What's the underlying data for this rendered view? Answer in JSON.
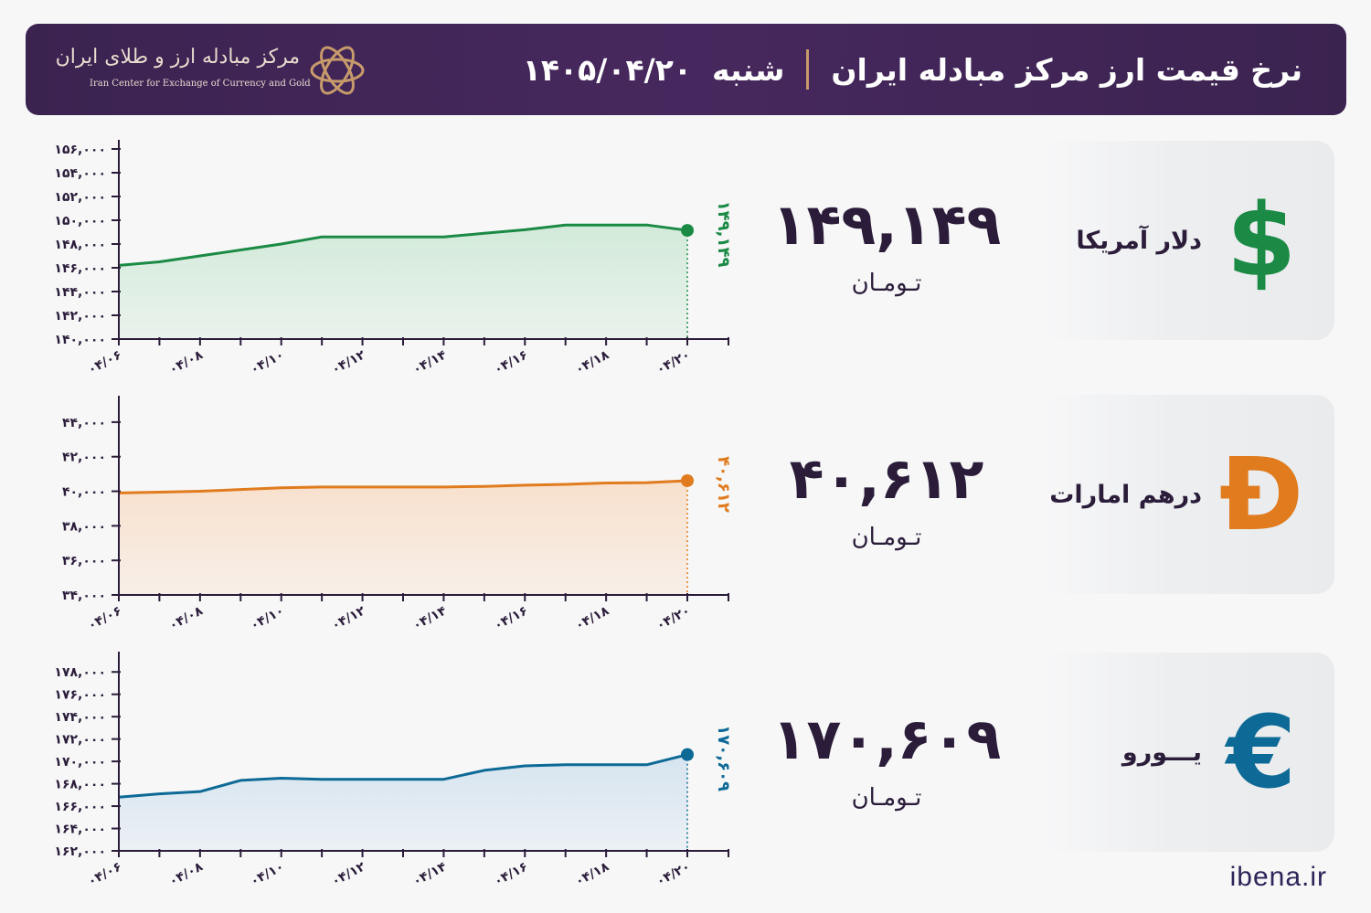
{
  "header": {
    "title": "نرخ قیمت ارز مرکز مبادله ایران",
    "day": "شنبه",
    "date": "۱۴۰۵/۰۴/۲۰",
    "logo_fa": "مرکز مبادله ارز و طلای ایران",
    "logo_en": "Iran Center for Exchange of Currency and Gold",
    "colors": {
      "bg": "#45275b",
      "accent": "#c79a6c"
    }
  },
  "currencies": [
    {
      "label": "دلار آمریکا",
      "symbol": "$",
      "icon": "dollar-icon",
      "value": "۱۴۹,۱۴۹",
      "unit": "تـومـان",
      "color": "#1b8a45"
    },
    {
      "label": "درهم امارات",
      "symbol": "Đ",
      "icon": "dirham-icon",
      "value": "۴۰,۶۱۲",
      "unit": "تـومـان",
      "color": "#e07b1e"
    },
    {
      "label": "یـــورو",
      "symbol": "€",
      "icon": "euro-icon",
      "value": "۱۷۰,۶۰۹",
      "unit": "تـومـان",
      "color": "#0d6a96"
    }
  ],
  "footer": "ibena.ir",
  "chart_data": [
    {
      "type": "line",
      "x_tick_labels": [
        "۰۴/۰۶",
        "۰۴/۰۸",
        "۰۴/۱۰",
        "۰۴/۱۲",
        "۰۴/۱۴",
        "۰۴/۱۶",
        "۰۴/۱۸",
        "۰۴/۲۰"
      ],
      "x_tick_days": [
        6,
        8,
        10,
        12,
        14,
        16,
        18,
        20
      ],
      "x": [
        6,
        7,
        8,
        9,
        10,
        11,
        12,
        13,
        14,
        15,
        16,
        17,
        18,
        19,
        20
      ],
      "values": [
        146200,
        146500,
        147000,
        147500,
        148000,
        148600,
        148600,
        148600,
        148600,
        148900,
        149200,
        149600,
        149600,
        149600,
        149149
      ],
      "last_label": "۱۴۹,۱۴۹",
      "ylim": [
        140000,
        156000
      ],
      "y_ticks": [
        140000,
        142000,
        144000,
        146000,
        148000,
        150000,
        152000,
        154000,
        156000
      ],
      "y_tick_labels": [
        "۱۴۰,۰۰۰",
        "۱۴۲,۰۰۰",
        "۱۴۴,۰۰۰",
        "۱۴۶,۰۰۰",
        "۱۴۸,۰۰۰",
        "۱۵۰,۰۰۰",
        "۱۵۲,۰۰۰",
        "۱۵۴,۰۰۰",
        "۱۵۶,۰۰۰"
      ],
      "color": "#1b8a45",
      "fill": "#d2ead9"
    },
    {
      "type": "line",
      "x_tick_labels": [
        "۰۴/۰۶",
        "۰۴/۰۸",
        "۰۴/۱۰",
        "۰۴/۱۲",
        "۰۴/۱۴",
        "۰۴/۱۶",
        "۰۴/۱۸",
        "۰۴/۲۰"
      ],
      "x_tick_days": [
        6,
        8,
        10,
        12,
        14,
        16,
        18,
        20
      ],
      "x": [
        6,
        7,
        8,
        9,
        10,
        11,
        12,
        13,
        14,
        15,
        16,
        17,
        18,
        19,
        20
      ],
      "values": [
        39900,
        39950,
        40000,
        40100,
        40200,
        40250,
        40250,
        40250,
        40250,
        40280,
        40350,
        40400,
        40480,
        40500,
        40612
      ],
      "last_label": "۴۰,۶۱۲",
      "ylim": [
        34000,
        45000
      ],
      "y_ticks": [
        34000,
        36000,
        38000,
        40000,
        42000,
        44000
      ],
      "y_tick_labels": [
        "۳۴,۰۰۰",
        "۳۶,۰۰۰",
        "۳۸,۰۰۰",
        "۴۰,۰۰۰",
        "۴۲,۰۰۰",
        "۴۴,۰۰۰"
      ],
      "color": "#e07b1e",
      "fill": "#f8e0cc"
    },
    {
      "type": "line",
      "x_tick_labels": [
        "۰۴/۰۶",
        "۰۴/۰۸",
        "۰۴/۱۰",
        "۰۴/۱۲",
        "۰۴/۱۴",
        "۰۴/۱۶",
        "۰۴/۱۸",
        "۰۴/۲۰"
      ],
      "x_tick_days": [
        6,
        8,
        10,
        12,
        14,
        16,
        18,
        20
      ],
      "x": [
        6,
        7,
        8,
        9,
        10,
        11,
        12,
        13,
        14,
        15,
        16,
        17,
        18,
        19,
        20
      ],
      "values": [
        166800,
        167100,
        167300,
        168300,
        168500,
        168400,
        168400,
        168400,
        168400,
        169200,
        169600,
        169700,
        169700,
        169700,
        170609
      ],
      "last_label": "۱۷۰,۶۰۹",
      "ylim": [
        162000,
        179000
      ],
      "y_ticks": [
        162000,
        164000,
        166000,
        168000,
        170000,
        172000,
        174000,
        176000,
        178000
      ],
      "y_tick_labels": [
        "۱۶۲,۰۰۰",
        "۱۶۴,۰۰۰",
        "۱۶۶,۰۰۰",
        "۱۶۸,۰۰۰",
        "۱۷۰,۰۰۰",
        "۱۷۲,۰۰۰",
        "۱۷۴,۰۰۰",
        "۱۷۶,۰۰۰",
        "۱۷۸,۰۰۰"
      ],
      "color": "#0d6a96",
      "fill": "#d6e4ef"
    }
  ]
}
